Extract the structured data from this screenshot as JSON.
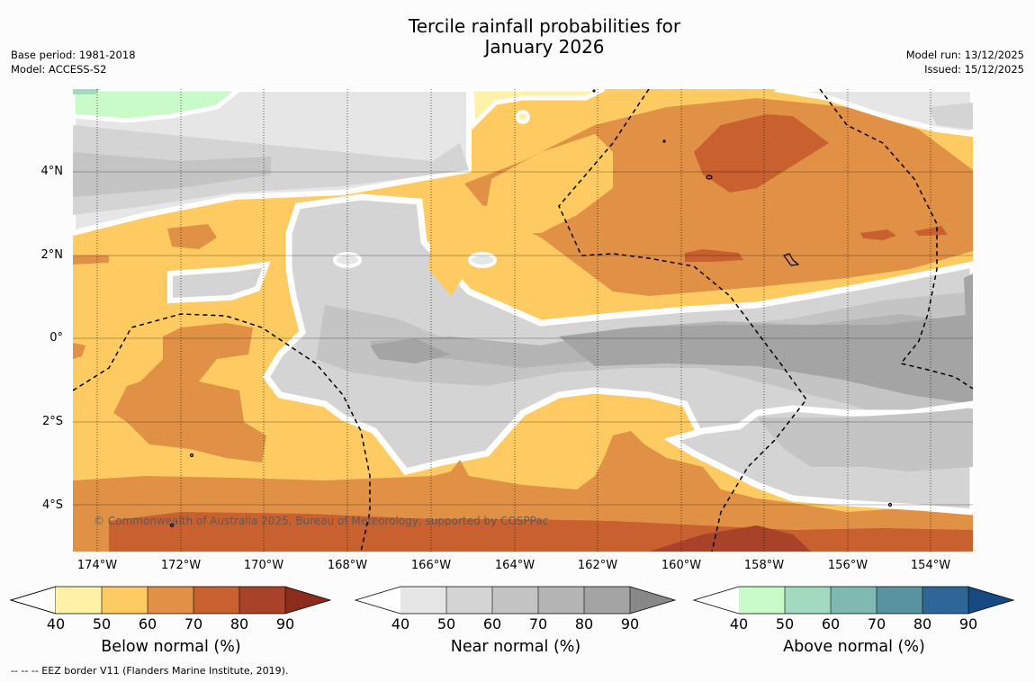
{
  "title_line1": "Tercile rainfall probabilities for",
  "title_line2": "January 2026",
  "base_period": "Base period: 1981-2018",
  "model": "Model: ACCESS-S2",
  "model_run": "Model run: 13/12/2025",
  "issued": "Issued: 15/12/2025",
  "lat_labels": [
    "4°N",
    "2°N",
    "0°",
    "2°S",
    "4°S"
  ],
  "lon_labels": [
    "174°W",
    "172°W",
    "170°W",
    "168°W",
    "166°W",
    "164°W",
    "162°W",
    "160°W",
    "158°W",
    "156°W",
    "154°W"
  ],
  "copyright": "© Commonwealth of Australia 2025, Bureau of Meteorology, supported by COSPPac",
  "footer": "--  --  -- EEZ border V11 (Flanders Marine Institute, 2019).",
  "colorbars": [
    {
      "title": "Below normal (%)",
      "ticks": [
        "40",
        "50",
        "60",
        "70",
        "80",
        "90"
      ],
      "colors": [
        "#fff2a8",
        "#fdcb62",
        "#e09145",
        "#c8602f",
        "#a8432a",
        "#8b2c1d"
      ]
    },
    {
      "title": "Near normal (%)",
      "ticks": [
        "40",
        "50",
        "60",
        "70",
        "80",
        "90"
      ],
      "colors": [
        "#e6e6e6",
        "#d4d4d4",
        "#c4c4c4",
        "#b4b4b4",
        "#a4a4a4",
        "#888888"
      ]
    },
    {
      "title": "Above normal (%)",
      "ticks": [
        "40",
        "50",
        "60",
        "70",
        "80",
        "90"
      ],
      "colors": [
        "#c8fbc8",
        "#a2dac0",
        "#80b8b2",
        "#5a93a0",
        "#2e6698",
        "#174a82"
      ]
    }
  ]
}
